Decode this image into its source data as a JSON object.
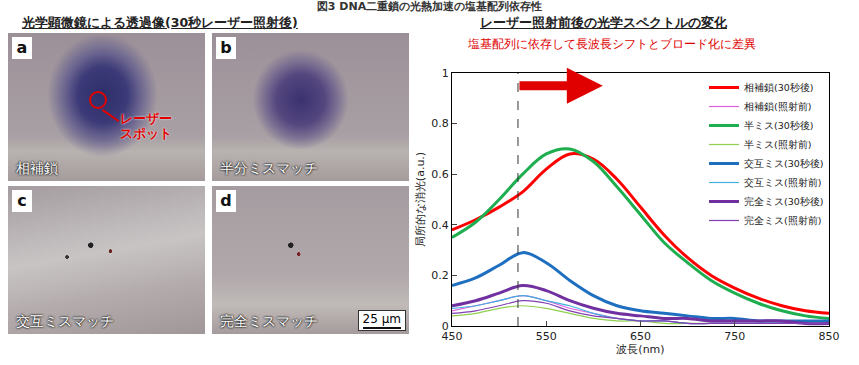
{
  "header": "図3 DNA二重鎖の光熱加速の塩基配列依存性",
  "micrographs": {
    "heading": "光学顕微鏡による透過像(30秒レーザー照射後)",
    "panels": [
      {
        "letter": "a",
        "label": "相補鎖"
      },
      {
        "letter": "b",
        "label": "半分ミスマッチ"
      },
      {
        "letter": "c",
        "label": "交互ミスマッチ"
      },
      {
        "letter": "d",
        "label": "完全ミスマッチ"
      }
    ],
    "laser_label": "レーザー\nスポット",
    "scale_bar": "25 μm"
  },
  "chart_data": {
    "type": "line",
    "title": "レーザー照射前後の光学スペクトルの変化",
    "subtitle": "塩基配列に依存して長波長シフトとブロード化に差異",
    "x_label": "波長(nm)",
    "y_label": "局所的な消光(a.u.)",
    "x": [
      450,
      475,
      500,
      525,
      550,
      575,
      600,
      625,
      650,
      675,
      700,
      725,
      750,
      775,
      800,
      825,
      850
    ],
    "series": [
      {
        "name": "相補鎖(30秒後)",
        "color": "#ff0000",
        "line_style": "thick",
        "values": [
          0.38,
          0.42,
          0.47,
          0.53,
          0.62,
          0.68,
          0.66,
          0.58,
          0.47,
          0.36,
          0.27,
          0.2,
          0.15,
          0.11,
          0.08,
          0.06,
          0.05
        ]
      },
      {
        "name": "相補鎖(照射前)",
        "color": "#e060e0",
        "line_style": "thin",
        "values": [
          0.06,
          0.08,
          0.1,
          0.12,
          0.1,
          0.07,
          0.05,
          0.03,
          0.02,
          0.02,
          0.01,
          0.01,
          0.01,
          0.01,
          0.01,
          0.01,
          0.01
        ]
      },
      {
        "name": "半ミス(30秒後)",
        "color": "#1fae4f",
        "line_style": "thick",
        "values": [
          0.35,
          0.41,
          0.5,
          0.6,
          0.68,
          0.7,
          0.65,
          0.55,
          0.44,
          0.33,
          0.25,
          0.18,
          0.13,
          0.09,
          0.06,
          0.04,
          0.03
        ]
      },
      {
        "name": "半ミス(照射前)",
        "color": "#90d050",
        "line_style": "thin",
        "values": [
          0.04,
          0.05,
          0.07,
          0.08,
          0.07,
          0.05,
          0.03,
          0.02,
          0.02,
          0.01,
          0.01,
          0.01,
          0.01,
          0.01,
          0.01,
          0.01,
          0.01
        ]
      },
      {
        "name": "交互ミス(30秒後)",
        "color": "#1f6fc0",
        "line_style": "thick",
        "values": [
          0.16,
          0.19,
          0.24,
          0.29,
          0.25,
          0.18,
          0.12,
          0.08,
          0.06,
          0.05,
          0.04,
          0.03,
          0.03,
          0.02,
          0.02,
          0.02,
          0.02
        ]
      },
      {
        "name": "交互ミス(照射前)",
        "color": "#40b0e0",
        "line_style": "thin",
        "values": [
          0.07,
          0.08,
          0.1,
          0.12,
          0.1,
          0.08,
          0.05,
          0.03,
          0.02,
          0.02,
          0.01,
          0.01,
          0.01,
          0.01,
          0.01,
          0.01,
          0.01
        ]
      },
      {
        "name": "完全ミス(30秒後)",
        "color": "#7030a0",
        "line_style": "thick",
        "values": [
          0.08,
          0.1,
          0.13,
          0.16,
          0.14,
          0.1,
          0.07,
          0.05,
          0.04,
          0.03,
          0.03,
          0.02,
          0.02,
          0.02,
          0.02,
          0.01,
          0.01
        ]
      },
      {
        "name": "完全ミス(照射前)",
        "color": "#8040b0",
        "line_style": "thin",
        "values": [
          0.05,
          0.06,
          0.08,
          0.1,
          0.09,
          0.06,
          0.04,
          0.03,
          0.02,
          0.02,
          0.01,
          0.01,
          0.01,
          0.01,
          0.01,
          0.01,
          0.01
        ]
      }
    ],
    "vline": 520,
    "arrow": {
      "x0": 520,
      "x1": 610,
      "y": 0.95
    },
    "xlim": [
      450,
      850
    ],
    "xticks": [
      450,
      550,
      650,
      750,
      850
    ],
    "ylim": [
      0,
      1
    ],
    "yticks": [
      0,
      0.2,
      0.4,
      0.6,
      0.8,
      1
    ],
    "legend": "upper right",
    "grid": false
  }
}
